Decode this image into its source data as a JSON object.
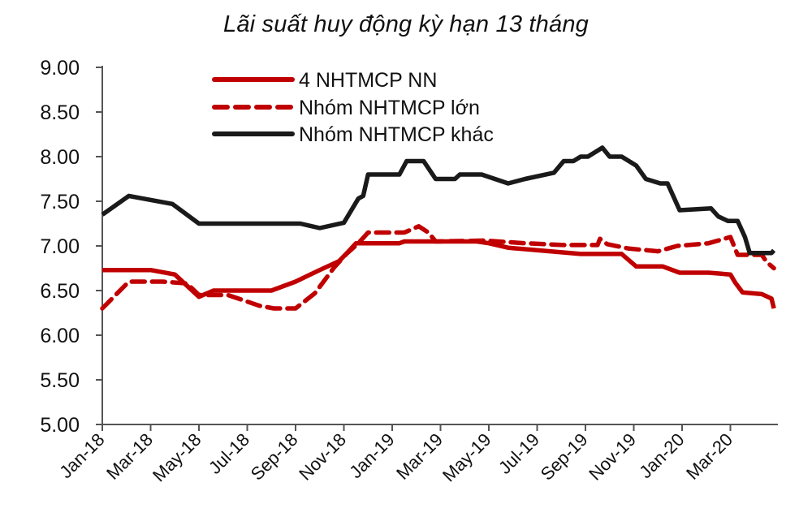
{
  "chart_data": {
    "type": "line",
    "title": "Lãi suất huy động kỳ hạn 13 tháng",
    "xlabel": "",
    "ylabel": "",
    "ylim": [
      5.0,
      9.0
    ],
    "yticks": [
      "9.00",
      "8.50",
      "8.00",
      "7.50",
      "7.00",
      "6.50",
      "6.00",
      "5.50",
      "5.00"
    ],
    "xticks": [
      "Jan-18",
      "Mar-18",
      "May-18",
      "Jul-18",
      "Sep-18",
      "Nov-18",
      "Jan-19",
      "Mar-19",
      "May-19",
      "Jul-19",
      "Sep-19",
      "Nov-19",
      "Jan-20",
      "Mar-20"
    ],
    "x_unit": "months since Jan-18",
    "xlim": [
      0,
      28
    ],
    "grid": false,
    "legend_position": "top-left inside",
    "series": [
      {
        "name": "4 NHTMCP NN",
        "color": "#c00000",
        "style": "solid",
        "points": [
          [
            0,
            6.73
          ],
          [
            2,
            6.73
          ],
          [
            3,
            6.68
          ],
          [
            4,
            6.43
          ],
          [
            4.6,
            6.5
          ],
          [
            7,
            6.5
          ],
          [
            8,
            6.6
          ],
          [
            9,
            6.73
          ],
          [
            9.8,
            6.83
          ],
          [
            10.2,
            6.94
          ],
          [
            10.5,
            7.03
          ],
          [
            12.3,
            7.03
          ],
          [
            12.5,
            7.05
          ],
          [
            15.5,
            7.05
          ],
          [
            16,
            7.03
          ],
          [
            16.8,
            6.98
          ],
          [
            19.8,
            6.91
          ],
          [
            21.5,
            6.91
          ],
          [
            22.1,
            6.77
          ],
          [
            23.2,
            6.77
          ],
          [
            23.9,
            6.7
          ],
          [
            25.1,
            6.7
          ],
          [
            26,
            6.68
          ],
          [
            26.2,
            6.59
          ],
          [
            26.5,
            6.48
          ],
          [
            27.3,
            6.46
          ],
          [
            27.7,
            6.41
          ],
          [
            27.8,
            6.3
          ]
        ]
      },
      {
        "name": "Nhóm NHTMCP lớn",
        "color": "#c00000",
        "style": "dashed",
        "points": [
          [
            0,
            6.3
          ],
          [
            1.1,
            6.6
          ],
          [
            2.5,
            6.6
          ],
          [
            3.5,
            6.58
          ],
          [
            4,
            6.45
          ],
          [
            5.2,
            6.45
          ],
          [
            6.5,
            6.33
          ],
          [
            7.1,
            6.3
          ],
          [
            8,
            6.3
          ],
          [
            8.8,
            6.47
          ],
          [
            9.6,
            6.76
          ],
          [
            10.1,
            6.91
          ],
          [
            10.6,
            7.03
          ],
          [
            11,
            7.15
          ],
          [
            12.5,
            7.15
          ],
          [
            13.1,
            7.22
          ],
          [
            13.5,
            7.15
          ],
          [
            13.8,
            7.05
          ],
          [
            15.8,
            7.06
          ],
          [
            17.5,
            7.03
          ],
          [
            19.1,
            7.01
          ],
          [
            20.5,
            7.01
          ],
          [
            20.6,
            7.08
          ],
          [
            20.9,
            7.02
          ],
          [
            21.8,
            6.97
          ],
          [
            23,
            6.94
          ],
          [
            23.8,
            7.0
          ],
          [
            25.1,
            7.03
          ],
          [
            26,
            7.1
          ],
          [
            26.3,
            6.9
          ],
          [
            27.3,
            6.9
          ],
          [
            27.5,
            6.82
          ],
          [
            27.8,
            6.75
          ]
        ]
      },
      {
        "name": "Nhóm NHTMCP khác",
        "color": "#1a1a1a",
        "style": "solid",
        "points": [
          [
            0,
            7.35
          ],
          [
            1.1,
            7.56
          ],
          [
            2.9,
            7.47
          ],
          [
            4,
            7.25
          ],
          [
            8.2,
            7.25
          ],
          [
            9,
            7.2
          ],
          [
            10,
            7.26
          ],
          [
            10.6,
            7.53
          ],
          [
            10.8,
            7.56
          ],
          [
            11,
            7.8
          ],
          [
            12.3,
            7.8
          ],
          [
            12.6,
            7.95
          ],
          [
            13.3,
            7.95
          ],
          [
            13.8,
            7.75
          ],
          [
            14.6,
            7.75
          ],
          [
            14.8,
            7.8
          ],
          [
            15.7,
            7.8
          ],
          [
            16.8,
            7.7
          ],
          [
            17.5,
            7.75
          ],
          [
            18.7,
            7.82
          ],
          [
            19.1,
            7.95
          ],
          [
            19.5,
            7.95
          ],
          [
            19.8,
            8.0
          ],
          [
            20.1,
            8.0
          ],
          [
            20.7,
            8.1
          ],
          [
            21,
            8.0
          ],
          [
            21.5,
            8.0
          ],
          [
            22.1,
            7.9
          ],
          [
            22.5,
            7.75
          ],
          [
            23.1,
            7.7
          ],
          [
            23.4,
            7.7
          ],
          [
            23.9,
            7.4
          ],
          [
            25.2,
            7.42
          ],
          [
            25.5,
            7.33
          ],
          [
            25.9,
            7.28
          ],
          [
            26.3,
            7.28
          ],
          [
            26.6,
            7.1
          ],
          [
            26.8,
            6.92
          ],
          [
            27.7,
            6.92
          ],
          [
            27.8,
            6.95
          ]
        ]
      }
    ]
  }
}
